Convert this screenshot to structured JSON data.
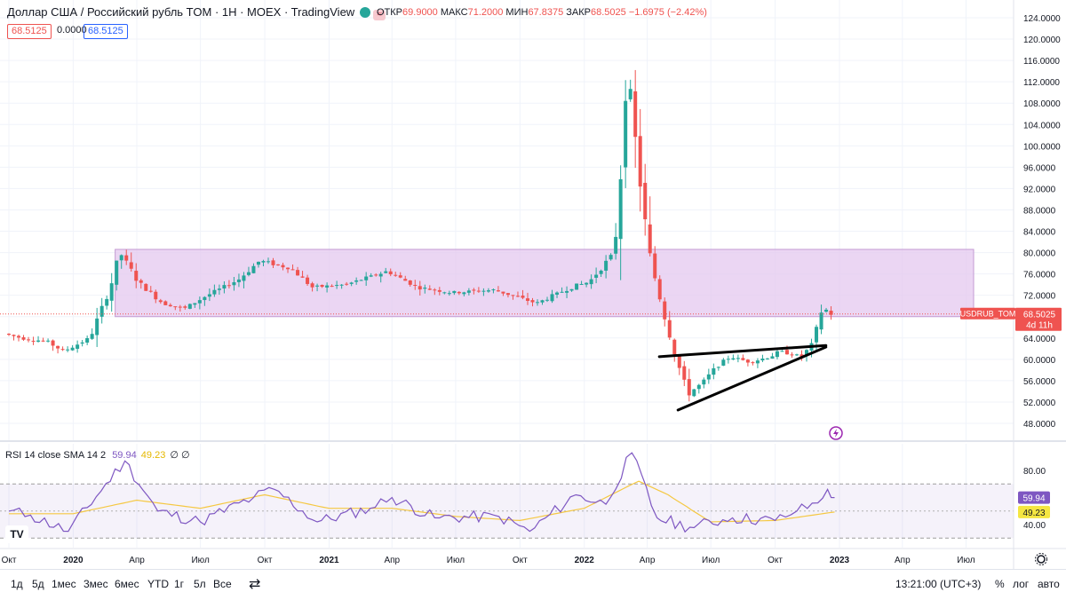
{
  "header": {
    "title": "Доллар США / Российский рубль TOM · 1Н · MOEX · TradingView",
    "ohlc": {
      "open_label": "ОТКР",
      "open": "69.9000",
      "high_label": "МАКС",
      "high": "71.2000",
      "low_label": "МИН",
      "low": "67.8375",
      "close_label": "ЗАКР",
      "close": "68.5025",
      "change": "−1.6975 (−2.42%)"
    },
    "price_boxes": [
      "68.5125",
      "0.0000",
      "68.5125"
    ]
  },
  "colors": {
    "up": "#26a69a",
    "down": "#ef5350",
    "zone": "#e4c8ef",
    "rsi_line": "#7e57c2",
    "sma_line": "#f5c842"
  },
  "price_axis": {
    "labels": [
      "124.0000",
      "120.0000",
      "116.0000",
      "112.0000",
      "108.0000",
      "104.0000",
      "100.0000",
      "96.0000",
      "92.0000",
      "88.0000",
      "84.0000",
      "80.0000",
      "76.0000",
      "72.0000",
      "68.0000",
      "64.0000",
      "60.0000",
      "56.0000",
      "52.0000",
      "48.0000"
    ],
    "symbol_tag": "USDRUB_TOM",
    "last_price": "68.5025",
    "countdown": "4d 11h"
  },
  "rsi": {
    "legend": "RSI 14 close SMA 14 2",
    "value": "59.94",
    "sma": "49.23",
    "extra": "∅ ∅",
    "axis_labels": [
      "80.00",
      "40.00"
    ]
  },
  "time_axis": [
    "Окт",
    "2020",
    "Апр",
    "Июл",
    "Окт",
    "2021",
    "Апр",
    "Июл",
    "Окт",
    "2022",
    "Апр",
    "Июл",
    "Окт",
    "2023",
    "Апр",
    "Июл"
  ],
  "bottom_bar": {
    "timeframes": [
      "1д",
      "5д",
      "1мес",
      "3мес",
      "6мес",
      "YTD",
      "1г",
      "5л",
      "Все"
    ],
    "clock": "13:21:00 (UTC+3)",
    "percent": "%",
    "log": "лог",
    "auto": "авто"
  },
  "chart_data": {
    "type": "candlestick",
    "title": "Доллар США / Российский рубль TOM · 1Н · MOEX · TradingView",
    "ylim": [
      46,
      125
    ],
    "zone": {
      "low": 68.0,
      "high": 80.6
    },
    "trend_lines": [
      {
        "from": [
          "2022-05-01",
          60.5
        ],
        "to": [
          "2022-12-05",
          62.6
        ]
      },
      {
        "from": [
          "2022-05-15",
          50.5
        ],
        "to": [
          "2022-12-05",
          62.3
        ]
      }
    ],
    "price_path": [
      [
        "2019-10-01",
        64.8
      ],
      [
        "2019-11-01",
        63.8
      ],
      [
        "2019-12-01",
        63.4
      ],
      [
        "2019-12-25",
        61.5
      ],
      [
        "2020-02-01",
        64.0
      ],
      [
        "2020-03-01",
        73.5
      ],
      [
        "2020-03-15",
        80.0
      ],
      [
        "2020-04-10",
        74.5
      ],
      [
        "2020-05-15",
        70.5
      ],
      [
        "2020-06-15",
        69.5
      ],
      [
        "2020-07-15",
        71.8
      ],
      [
        "2020-09-01",
        75.0
      ],
      [
        "2020-10-01",
        78.5
      ],
      [
        "2020-11-15",
        77.0
      ],
      [
        "2020-12-15",
        73.5
      ],
      [
        "2021-02-01",
        74.0
      ],
      [
        "2021-04-01",
        76.5
      ],
      [
        "2021-05-15",
        73.5
      ],
      [
        "2021-07-01",
        72.5
      ],
      [
        "2021-09-01",
        73.0
      ],
      [
        "2021-11-01",
        70.5
      ],
      [
        "2021-12-20",
        73.5
      ],
      [
        "2022-01-15",
        74.5
      ],
      [
        "2022-02-20",
        80.0
      ],
      [
        "2022-03-01",
        95.0
      ],
      [
        "2022-03-10",
        117.0
      ],
      [
        "2022-03-20",
        103.0
      ],
      [
        "2022-04-10",
        80.0
      ],
      [
        "2022-05-05",
        67.0
      ],
      [
        "2022-05-20",
        60.0
      ],
      [
        "2022-06-05",
        53.5
      ],
      [
        "2022-06-25",
        55.5
      ],
      [
        "2022-07-15",
        58.5
      ],
      [
        "2022-08-05",
        60.5
      ],
      [
        "2022-09-01",
        59.5
      ],
      [
        "2022-10-01",
        60.5
      ],
      [
        "2022-10-15",
        61.5
      ],
      [
        "2022-11-15",
        60.5
      ],
      [
        "2022-12-01",
        63.0
      ],
      [
        "2022-12-15",
        70.0
      ],
      [
        "2022-12-25",
        68.5
      ]
    ],
    "rsi_path": [
      [
        "2019-10-01",
        50
      ],
      [
        "2019-11-01",
        47
      ],
      [
        "2019-12-25",
        35
      ],
      [
        "2020-03-15",
        87
      ],
      [
        "2020-05-01",
        50
      ],
      [
        "2020-07-01",
        42
      ],
      [
        "2020-09-15",
        60
      ],
      [
        "2020-10-15",
        66
      ],
      [
        "2020-12-15",
        42
      ],
      [
        "2021-03-01",
        52
      ],
      [
        "2021-04-01",
        60
      ],
      [
        "2021-06-01",
        45
      ],
      [
        "2021-09-01",
        46
      ],
      [
        "2021-10-15",
        35
      ],
      [
        "2021-12-20",
        62
      ],
      [
        "2022-02-01",
        55
      ],
      [
        "2022-03-10",
        93
      ],
      [
        "2022-04-15",
        45
      ],
      [
        "2022-06-01",
        38
      ],
      [
        "2022-08-01",
        45
      ],
      [
        "2022-10-01",
        43
      ],
      [
        "2022-11-01",
        50
      ],
      [
        "2022-12-01",
        56
      ],
      [
        "2022-12-15",
        66
      ],
      [
        "2022-12-25",
        59.94
      ]
    ],
    "rsi_sma_path": [
      [
        "2019-10-01",
        48
      ],
      [
        "2020-01-01",
        48
      ],
      [
        "2020-04-01",
        58
      ],
      [
        "2020-07-01",
        52
      ],
      [
        "2020-10-01",
        62
      ],
      [
        "2021-01-01",
        52
      ],
      [
        "2021-04-01",
        52
      ],
      [
        "2021-07-01",
        46
      ],
      [
        "2021-10-01",
        43
      ],
      [
        "2022-01-01",
        52
      ],
      [
        "2022-03-20",
        72
      ],
      [
        "2022-05-01",
        62
      ],
      [
        "2022-07-01",
        42
      ],
      [
        "2022-10-01",
        43
      ],
      [
        "2022-12-25",
        49.23
      ]
    ],
    "rsi_ylim": [
      25,
      100
    ],
    "rsi_band": [
      30,
      70
    ]
  }
}
